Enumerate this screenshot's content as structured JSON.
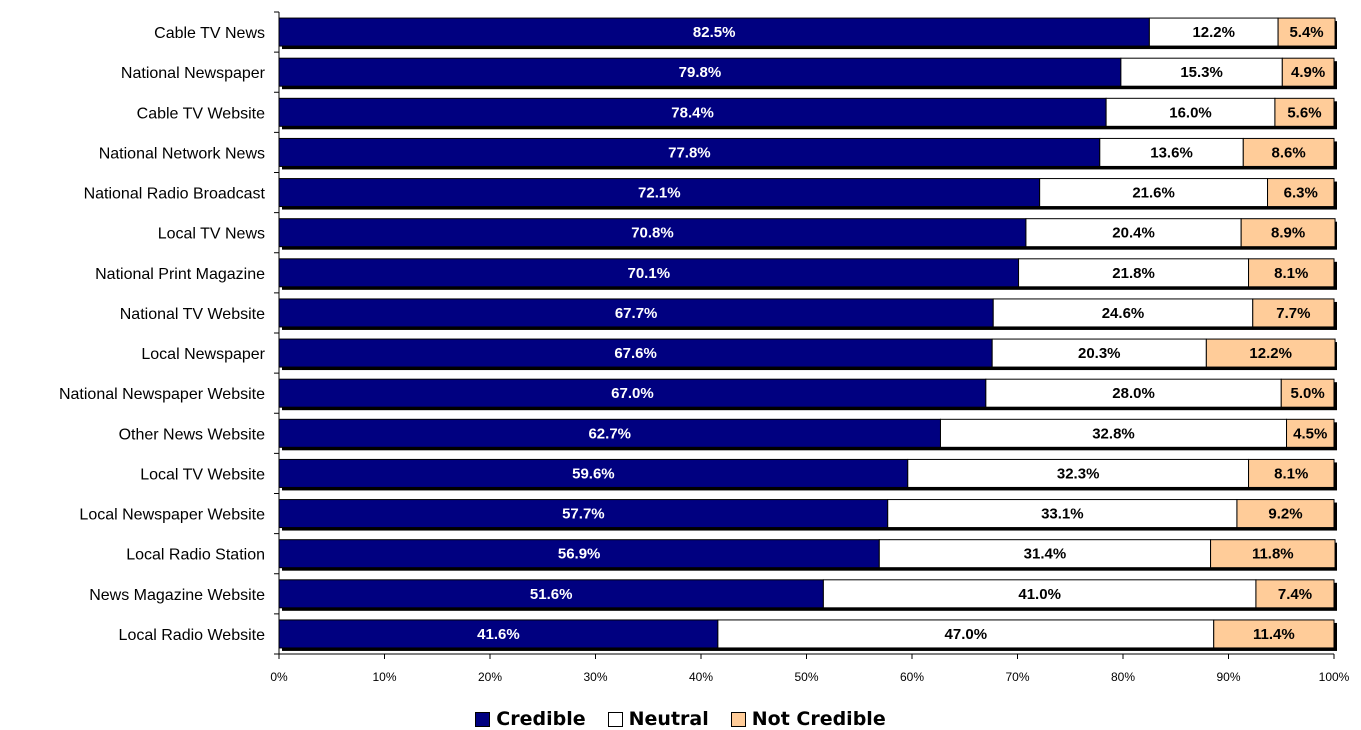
{
  "chart_data": {
    "type": "bar",
    "orientation": "horizontal",
    "stacked": true,
    "categories": [
      "Cable TV News",
      "National Newspaper",
      "Cable TV Website",
      "National Network News",
      "National Radio Broadcast",
      "Local TV News",
      "National Print Magazine",
      "National TV Website",
      "Local Newspaper",
      "National Newspaper Website",
      "Other News Website",
      "Local TV Website",
      "Local Newspaper Website",
      "Local Radio Station",
      "News Magazine Website",
      "Local Radio Website"
    ],
    "series": [
      {
        "name": "Credible",
        "color": "#000080",
        "values": [
          82.5,
          79.8,
          78.4,
          77.8,
          72.1,
          70.8,
          70.1,
          67.7,
          67.6,
          67.0,
          62.7,
          59.6,
          57.7,
          56.9,
          51.6,
          41.6
        ],
        "labels": [
          "82.5%",
          "79.8%",
          "78.4%",
          "77.8%",
          "72.1%",
          "70.8%",
          "70.1%",
          "67.7%",
          "67.6%",
          "67.0%",
          "62.7%",
          "59.6%",
          "57.7%",
          "56.9%",
          "51.6%",
          "41.6%"
        ]
      },
      {
        "name": "Neutral",
        "color": "#ffffff",
        "values": [
          12.2,
          15.3,
          16.0,
          13.6,
          21.6,
          20.4,
          21.8,
          24.6,
          20.3,
          28.0,
          32.8,
          32.3,
          33.1,
          31.4,
          41.0,
          47.0
        ],
        "labels": [
          "12.2%",
          "15.3%",
          "16.0%",
          "13.6%",
          "21.6%",
          "20.4%",
          "21.8%",
          "24.6%",
          "20.3%",
          "28.0%",
          "32.8%",
          "32.3%",
          "33.1%",
          "31.4%",
          "41.0%",
          "47.0%"
        ]
      },
      {
        "name": "Not Credible",
        "color": "#ffcc99",
        "values": [
          5.4,
          4.9,
          5.6,
          8.6,
          6.3,
          8.9,
          8.1,
          7.7,
          12.2,
          5.0,
          4.5,
          8.1,
          9.2,
          11.8,
          7.4,
          11.4
        ],
        "labels": [
          "5.4%",
          "4.9%",
          "5.6%",
          "8.6%",
          "6.3%",
          "8.9%",
          "8.1%",
          "7.7%",
          "12.2%",
          "5.0%",
          "4.5%",
          "8.1%",
          "9.2%",
          "11.8%",
          "7.4%",
          "11.4%"
        ]
      }
    ],
    "xlim": [
      0,
      100
    ],
    "xticks": [
      "0%",
      "10%",
      "20%",
      "30%",
      "40%",
      "50%",
      "60%",
      "70%",
      "80%",
      "90%",
      "100%"
    ],
    "grid": false,
    "legend_position": "bottom",
    "title": "",
    "xlabel": "",
    "ylabel": ""
  }
}
